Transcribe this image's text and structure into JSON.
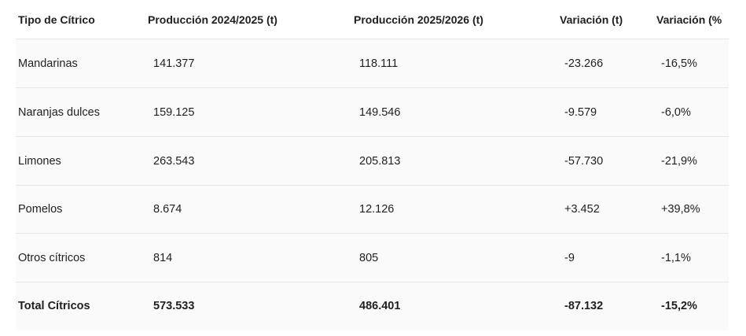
{
  "table": {
    "headers": [
      "Tipo de Cítrico",
      "Producción 2024/2025 (t)",
      "Producción 2025/2026 (t)",
      "Variación (t)",
      "Variación (%"
    ],
    "rows": [
      [
        "Mandarinas",
        "141.377",
        "118.111",
        "-23.266",
        "-16,5%"
      ],
      [
        "Naranjas dulces",
        "159.125",
        "149.546",
        "-9.579",
        "-6,0%"
      ],
      [
        "Limones",
        "263.543",
        "205.813",
        "-57.730",
        "-21,9%"
      ],
      [
        "Pomelos",
        "8.674",
        "12.126",
        "+3.452",
        "+39,8%"
      ],
      [
        "Otros cítricos",
        "814",
        "805",
        "-9",
        "-1,1%"
      ]
    ],
    "total": [
      "Total Cítricos",
      "573.533",
      "486.401",
      "-87.132",
      "-15,2%"
    ]
  }
}
